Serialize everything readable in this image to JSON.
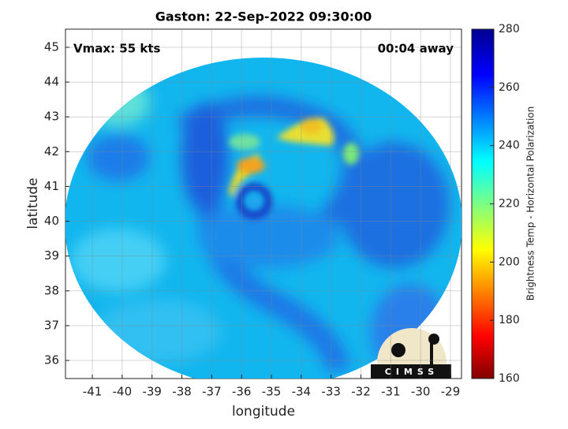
{
  "chart_data": {
    "type": "image",
    "title": "Gaston: 22-Sep-2022 09:30:00",
    "annotations": [
      "Vmax: 55 kts",
      "00:04 away"
    ],
    "x_label": "longitude",
    "y_label": "latitude",
    "xlim": [
      -41.9,
      -28.63
    ],
    "ylim": [
      35.48,
      45.52
    ],
    "xticks": [
      -41,
      -40,
      -39,
      -38,
      -37,
      -36,
      -35,
      -34,
      -33,
      -32,
      -31,
      -30,
      -29
    ],
    "yticks": [
      36,
      37,
      38,
      39,
      40,
      41,
      42,
      43,
      44,
      45
    ],
    "grid": true,
    "colorbar": {
      "label": "Brightness Temp - Horizontal Polarization",
      "lim": [
        160,
        280
      ],
      "ticks": [
        160,
        180,
        200,
        220,
        240,
        260,
        280
      ]
    },
    "logo": "CIMSS"
  }
}
